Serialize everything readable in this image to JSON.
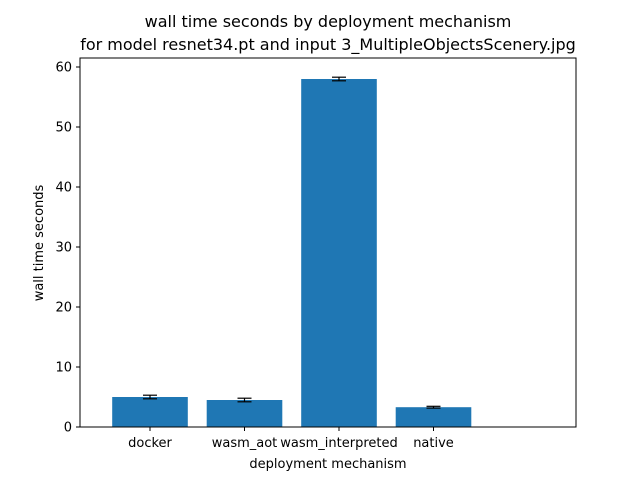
{
  "chart_data": {
    "type": "bar",
    "title": "wall time seconds by deployment mechanism",
    "subtitle": "for model resnet34.pt and input 3_MultipleObjectsScenery.jpg",
    "xlabel": "deployment mechanism",
    "ylabel": "wall time seconds",
    "categories": [
      "docker",
      "wasm_aot",
      "wasm_interpreted",
      "native"
    ],
    "values": [
      5.0,
      4.5,
      58.0,
      3.3
    ],
    "errors": [
      0.3,
      0.3,
      0.3,
      0.15
    ],
    "ylim": [
      0,
      61.5
    ],
    "yticks": [
      0,
      10,
      20,
      30,
      40,
      50,
      60
    ],
    "ytick_labels": [
      "0",
      "10",
      "20",
      "30",
      "40",
      "50",
      "60"
    ],
    "grid": false,
    "bar_color": "#1f77b4",
    "error_color": "#000000"
  }
}
